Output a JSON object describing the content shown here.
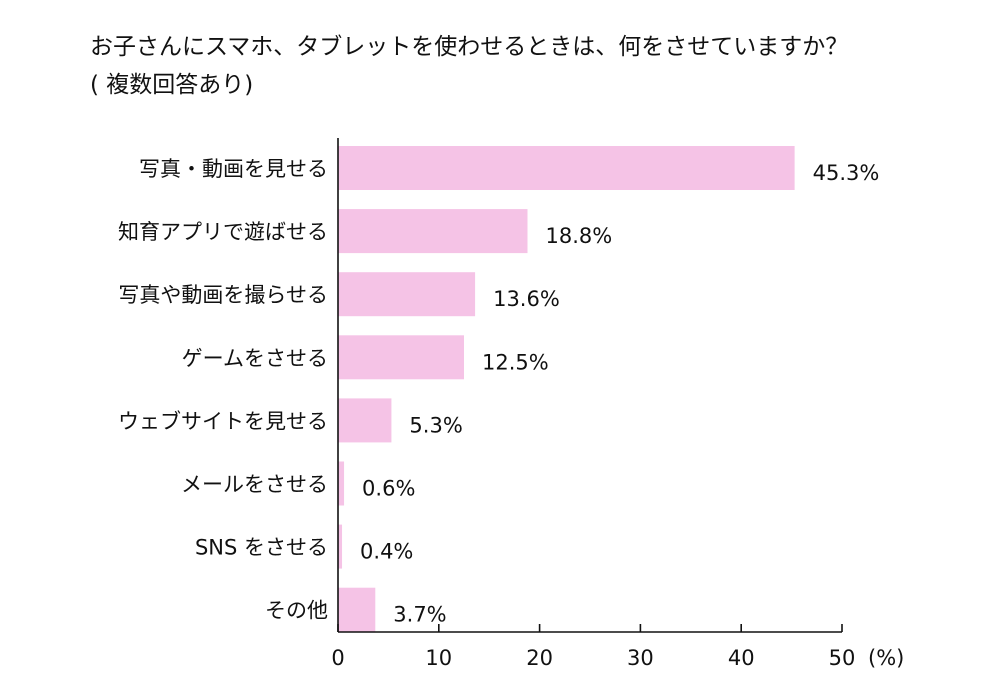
{
  "chart_data": {
    "type": "bar",
    "orientation": "horizontal",
    "title": "お子さんにスマホ、タブレットを使わせるときは、何をさせていますか？",
    "subtitle": "( 複数回答あり)",
    "categories": [
      "写真・動画を見せる",
      "知育アプリで遊ばせる",
      "写真や動画を撮らせる",
      "ゲームをさせる",
      "ウェブサイトを見せる",
      "メールをさせる",
      "SNS をさせる",
      "その他"
    ],
    "values": [
      45.3,
      18.8,
      13.6,
      12.5,
      5.3,
      0.6,
      0.4,
      3.7
    ],
    "value_labels": [
      "45.3%",
      "18.8%",
      "13.6%",
      "12.5%",
      "5.3%",
      "0.6%",
      "0.4%",
      "3.7%"
    ],
    "xlim": [
      0,
      50
    ],
    "xticks": [
      0,
      10,
      20,
      30,
      40,
      50
    ],
    "xticklabels": [
      "0",
      "10",
      "20",
      "30",
      "40",
      "50"
    ],
    "xunit": "(%)",
    "bar_color": "#f5c3e6",
    "grid": false,
    "legend": "none"
  }
}
